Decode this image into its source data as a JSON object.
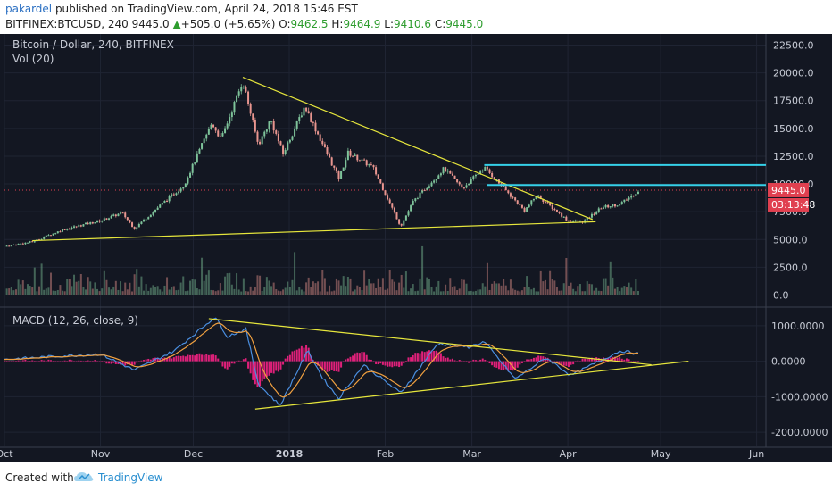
{
  "header": {
    "author": "pakardel",
    "published_text": " published on TradingView.com, April 24, 2018 15:46 EST",
    "symbol_line": "BITFINEX:BTCUSD, 240",
    "last": "9445.0",
    "change_arrow": "▲",
    "change": "+505.0 (+5.65%)",
    "o_label": "O:",
    "o": "9462.5",
    "h_label": "H:",
    "h": "9464.9",
    "l_label": "L:",
    "l": "9410.6",
    "c_label": "C:",
    "c": "9445.0"
  },
  "footer": {
    "created": "Created with",
    "brand": "TradingView"
  },
  "colors": {
    "background": "#131722",
    "text": "#c8ccd6",
    "grid": "#1f2433",
    "candle_up": "#7ec39a",
    "candle_down": "#e8958f",
    "trendline": "#e6e63c",
    "horizontal": "#35d0e8",
    "macd": "#4b8fe0",
    "signal": "#f0a040",
    "histogram": "#e0207a",
    "price_tag": "#e04050"
  },
  "chart_data": [
    {
      "type": "candlestick",
      "title": "Bitcoin / Dollar, 240, BITFINEX",
      "indicator_label": "Vol (20)",
      "x_ticks": [
        "Oct",
        "Nov",
        "Dec",
        "2018",
        "Feb",
        "Mar",
        "Apr",
        "May",
        "Jun"
      ],
      "y_ticks": [
        "22500.0",
        "20000.0",
        "17500.0",
        "15000.0",
        "12500.0",
        "10000.0",
        "7500.0",
        "5000.0",
        "2500.0",
        "0.0"
      ],
      "ylim": [
        -1000,
        23500
      ],
      "x_range_days": [
        "2017-10-01",
        "2018-06-04"
      ],
      "price_path": [
        {
          "date": "2017-10-01",
          "price": 4400
        },
        {
          "date": "2017-10-10",
          "price": 4800
        },
        {
          "date": "2017-10-20",
          "price": 5900
        },
        {
          "date": "2017-11-01",
          "price": 6700
        },
        {
          "date": "2017-11-08",
          "price": 7400
        },
        {
          "date": "2017-11-12",
          "price": 6000
        },
        {
          "date": "2017-11-20",
          "price": 8000
        },
        {
          "date": "2017-11-28",
          "price": 9900
        },
        {
          "date": "2017-12-07",
          "price": 15500
        },
        {
          "date": "2017-12-10",
          "price": 14000
        },
        {
          "date": "2017-12-17",
          "price": 19300
        },
        {
          "date": "2017-12-22",
          "price": 13500
        },
        {
          "date": "2017-12-26",
          "price": 15800
        },
        {
          "date": "2017-12-30",
          "price": 12700
        },
        {
          "date": "2018-01-06",
          "price": 17000
        },
        {
          "date": "2018-01-17",
          "price": 10500
        },
        {
          "date": "2018-01-20",
          "price": 12800
        },
        {
          "date": "2018-01-28",
          "price": 11500
        },
        {
          "date": "2018-02-06",
          "price": 6200
        },
        {
          "date": "2018-02-10",
          "price": 8400
        },
        {
          "date": "2018-02-20",
          "price": 11400
        },
        {
          "date": "2018-02-26",
          "price": 9600
        },
        {
          "date": "2018-03-05",
          "price": 11500
        },
        {
          "date": "2018-03-18",
          "price": 7600
        },
        {
          "date": "2018-03-22",
          "price": 9000
        },
        {
          "date": "2018-04-01",
          "price": 6700
        },
        {
          "date": "2018-04-06",
          "price": 6600
        },
        {
          "date": "2018-04-12",
          "price": 7900
        },
        {
          "date": "2018-04-18",
          "price": 8200
        },
        {
          "date": "2018-04-24",
          "price": 9445
        }
      ],
      "last_price_tag": "9445.0",
      "countdown_tag": "03:13:48",
      "trendlines": [
        {
          "from": {
            "date": "2017-12-17",
            "price": 19600
          },
          "to": {
            "date": "2018-04-09",
            "price": 6800
          }
        },
        {
          "from": {
            "date": "2017-10-10",
            "price": 4900
          },
          "to": {
            "date": "2018-04-10",
            "price": 6600
          }
        }
      ],
      "horizontal_lines": [
        {
          "from_date": "2018-03-05",
          "price": 11700
        },
        {
          "from_date": "2018-03-06",
          "price": 9900
        }
      ]
    },
    {
      "type": "macd",
      "title": "MACD (12, 26, close, 9)",
      "y_ticks": [
        "1000.0000",
        "0.0000",
        "-1000.0000",
        "-2000.0000"
      ],
      "ylim": [
        -2400,
        1500
      ],
      "macd_path": [
        {
          "date": "2017-10-01",
          "value": 50
        },
        {
          "date": "2017-10-20",
          "value": 150
        },
        {
          "date": "2017-11-01",
          "value": 200
        },
        {
          "date": "2017-11-12",
          "value": -250
        },
        {
          "date": "2017-11-25",
          "value": 300
        },
        {
          "date": "2017-12-08",
          "value": 1250
        },
        {
          "date": "2017-12-12",
          "value": 700
        },
        {
          "date": "2017-12-18",
          "value": 900
        },
        {
          "date": "2017-12-22",
          "value": -650
        },
        {
          "date": "2017-12-29",
          "value": -1250
        },
        {
          "date": "2018-01-07",
          "value": 300
        },
        {
          "date": "2018-01-12",
          "value": -500
        },
        {
          "date": "2018-01-17",
          "value": -1050
        },
        {
          "date": "2018-01-25",
          "value": -100
        },
        {
          "date": "2018-02-06",
          "value": -900
        },
        {
          "date": "2018-02-18",
          "value": 500
        },
        {
          "date": "2018-02-28",
          "value": 400
        },
        {
          "date": "2018-03-05",
          "value": 550
        },
        {
          "date": "2018-03-15",
          "value": -500
        },
        {
          "date": "2018-03-25",
          "value": 100
        },
        {
          "date": "2018-04-02",
          "value": -400
        },
        {
          "date": "2018-04-10",
          "value": -50
        },
        {
          "date": "2018-04-18",
          "value": 300
        },
        {
          "date": "2018-04-24",
          "value": 200
        }
      ],
      "trendlines": [
        {
          "from": {
            "date": "2017-12-06",
            "value": 1200
          },
          "to": {
            "date": "2018-04-28",
            "value": -100
          }
        },
        {
          "from": {
            "date": "2017-12-21",
            "value": -1350
          },
          "to": {
            "date": "2018-05-10",
            "value": 0
          }
        }
      ]
    }
  ]
}
